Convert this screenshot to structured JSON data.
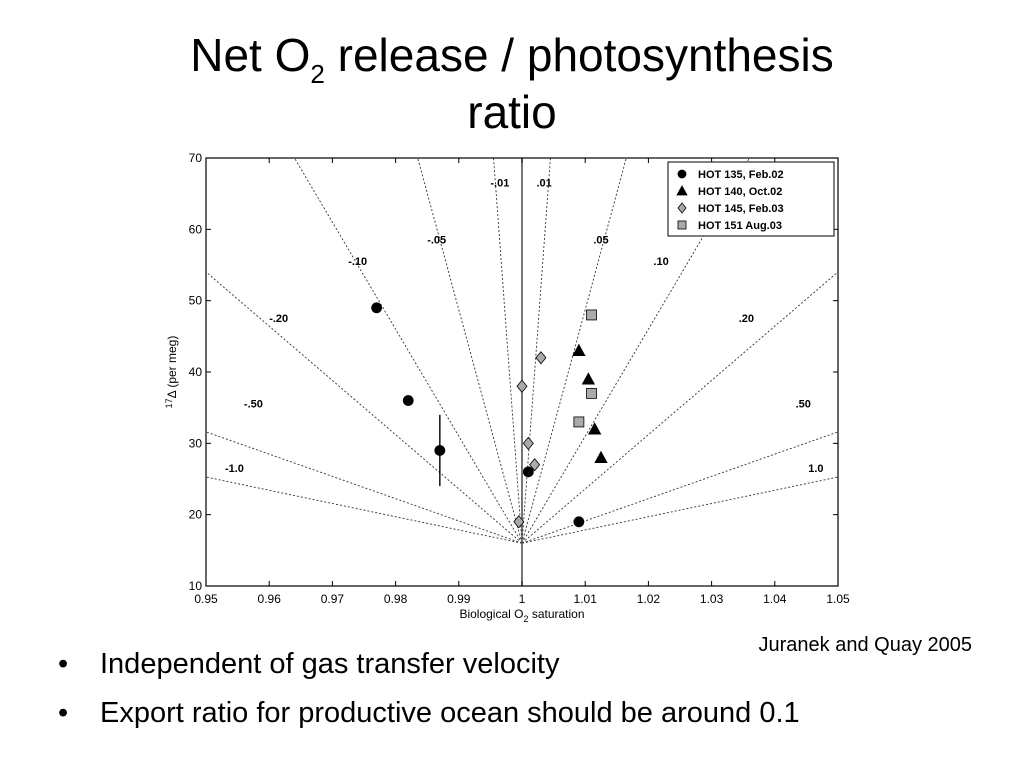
{
  "title": {
    "line1_pre": "Net O",
    "line1_sub": "2",
    "line1_post": " release / photosynthesis",
    "line2": "ratio"
  },
  "citation": "Juranek and Quay 2005",
  "bullets": [
    "Independent of gas transfer velocity",
    "Export ratio for productive ocean should be around 0.1"
  ],
  "chart_data": {
    "type": "scatter",
    "xlabel_pre": "Biological O",
    "xlabel_sub": "2",
    "xlabel_post": " saturation",
    "ylabel_pre": "17",
    "ylabel_post": "Δ (per meg)",
    "xlim": [
      0.95,
      1.05
    ],
    "ylim": [
      10,
      70
    ],
    "xticks": [
      "0.95",
      "0.96",
      "0.97",
      "0.98",
      "0.99",
      "1",
      "1.01",
      "1.02",
      "1.03",
      "1.04",
      "1.05"
    ],
    "yticks": [
      "10",
      "20",
      "30",
      "40",
      "50",
      "60",
      "70"
    ],
    "grid": false,
    "legend_position": "top-right",
    "vertical_line_x": 1.0,
    "isolines": [
      {
        "label": "-.01",
        "x_at_top": 0.9955,
        "label_pos": [
          0.9965,
          66
        ]
      },
      {
        "label": ".01",
        "x_at_top": 1.0045,
        "label_pos": [
          1.0035,
          66
        ]
      },
      {
        "label": "-.05",
        "x_at_top": 0.9835,
        "label_pos": [
          0.9865,
          58
        ]
      },
      {
        "label": ".05",
        "x_at_top": 1.0165,
        "label_pos": [
          1.0125,
          58
        ]
      },
      {
        "label": "-.10",
        "x_at_top": 0.964,
        "label_pos": [
          0.974,
          55
        ]
      },
      {
        "label": ".10",
        "x_at_top": 1.036,
        "label_pos": [
          1.022,
          55
        ]
      },
      {
        "label": "-.20",
        "x_at_top": 0.929,
        "label_pos": [
          0.9615,
          47
        ]
      },
      {
        "label": ".20",
        "x_at_top": 1.071,
        "label_pos": [
          1.0355,
          47
        ]
      },
      {
        "label": "-.50",
        "x_at_top": 0.827,
        "label_pos": [
          0.9575,
          35
        ]
      },
      {
        "label": ".50",
        "x_at_top": 1.173,
        "label_pos": [
          1.0445,
          35
        ]
      },
      {
        "label": "-1.0",
        "x_at_top": 0.709,
        "label_pos": [
          0.9545,
          26
        ]
      },
      {
        "label": "1.0",
        "x_at_top": 1.291,
        "label_pos": [
          1.0465,
          26
        ]
      }
    ],
    "isoline_origin": [
      1.0,
      16.0
    ],
    "series": [
      {
        "name": "HOT 135, Feb.02",
        "marker": "circle",
        "color": "#000000",
        "points": [
          [
            0.977,
            49
          ],
          [
            0.982,
            36
          ],
          [
            0.987,
            29
          ],
          [
            1.001,
            26
          ],
          [
            1.009,
            19
          ]
        ]
      },
      {
        "name": "HOT 140, Oct.02",
        "marker": "triangle",
        "color": "#000000",
        "points": [
          [
            1.009,
            43
          ],
          [
            1.0105,
            39
          ],
          [
            1.0115,
            32
          ],
          [
            1.0125,
            28
          ]
        ]
      },
      {
        "name": "HOT 145, Feb.03",
        "marker": "diamond",
        "color": "#aaaaaa",
        "points": [
          [
            0.9995,
            19
          ],
          [
            1.0,
            38
          ],
          [
            1.001,
            30
          ],
          [
            1.002,
            27
          ],
          [
            1.003,
            42
          ]
        ]
      },
      {
        "name": "HOT 151 Aug.03",
        "marker": "square",
        "color": "#aaaaaa",
        "points": [
          [
            1.009,
            33
          ],
          [
            1.011,
            48
          ],
          [
            1.011,
            37
          ]
        ]
      }
    ],
    "error_bars": [
      {
        "x": 0.987,
        "y_low": 24,
        "y_high": 34
      }
    ]
  }
}
